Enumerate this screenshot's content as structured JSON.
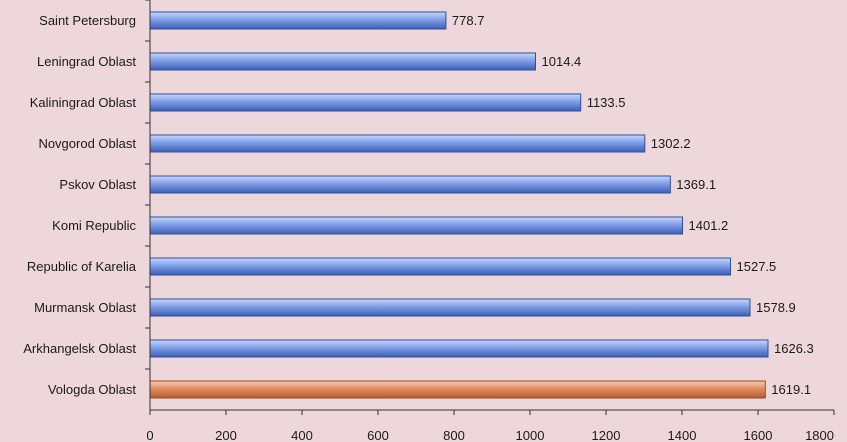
{
  "chart_data": {
    "type": "bar",
    "orientation": "horizontal",
    "categories": [
      "Saint Petersburg",
      "Leningrad Oblast",
      "Kaliningrad Oblast",
      "Novgorod Oblast",
      "Pskov Oblast",
      "Komi Republic",
      "Republic of Karelia",
      "Murmansk Oblast",
      "Arkhangelsk Oblast",
      "Vologda Oblast"
    ],
    "values": [
      778.7,
      1014.4,
      1133.5,
      1302.2,
      1369.1,
      1401.2,
      1527.5,
      1578.9,
      1626.3,
      1619.1
    ],
    "value_labels": [
      "778.7",
      "1014.4",
      "1133.5",
      "1302.2",
      "1369.1",
      "1401.2",
      "1527.5",
      "1578.9",
      "1626.3",
      "1619.1"
    ],
    "highlight": "Vologda Oblast",
    "xlim": [
      0,
      1800
    ],
    "xticks": [
      0,
      200,
      400,
      600,
      800,
      1000,
      1200,
      1400,
      1600,
      1800
    ],
    "xtick_labels": [
      "0",
      "200",
      "400",
      "600",
      "800",
      "1000",
      "1200",
      "1400",
      "1600",
      "1800"
    ],
    "title": "",
    "xlabel": "",
    "ylabel": "",
    "grid": false,
    "colors": {
      "background": "#eed7da",
      "bar": "#7a9be6",
      "bar_highlight": "#e5926a",
      "axis": "#333333"
    }
  }
}
